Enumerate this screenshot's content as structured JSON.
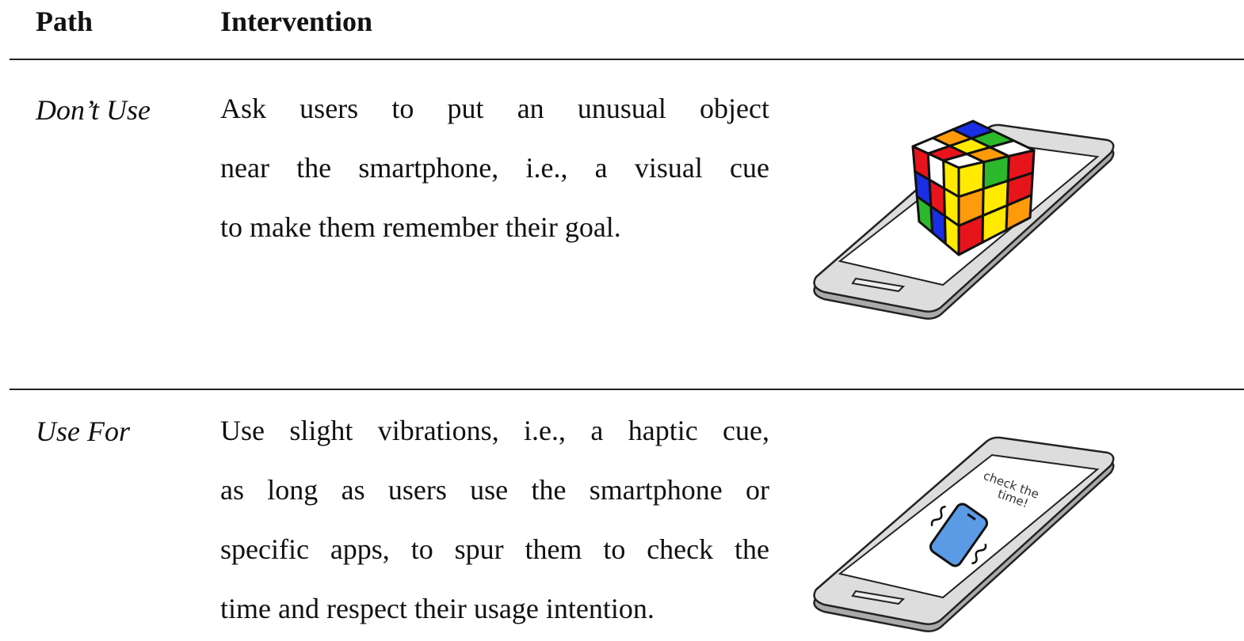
{
  "header": {
    "path": "Path",
    "intervention": "Intervention"
  },
  "rows": [
    {
      "path": "Don’t Use",
      "intervention": [
        "Ask users to put an unusual object",
        "near the smartphone, i.e., a visual cue",
        "to make them remember their goal."
      ]
    },
    {
      "path": "Use For",
      "intervention": [
        "Use slight vibrations, i.e., a haptic cue,",
        "as long as users use the smartphone or",
        "specific apps, to spur them to check the",
        "time and respect their usage intention."
      ],
      "image_text": [
        "check the",
        "time!"
      ]
    }
  ]
}
